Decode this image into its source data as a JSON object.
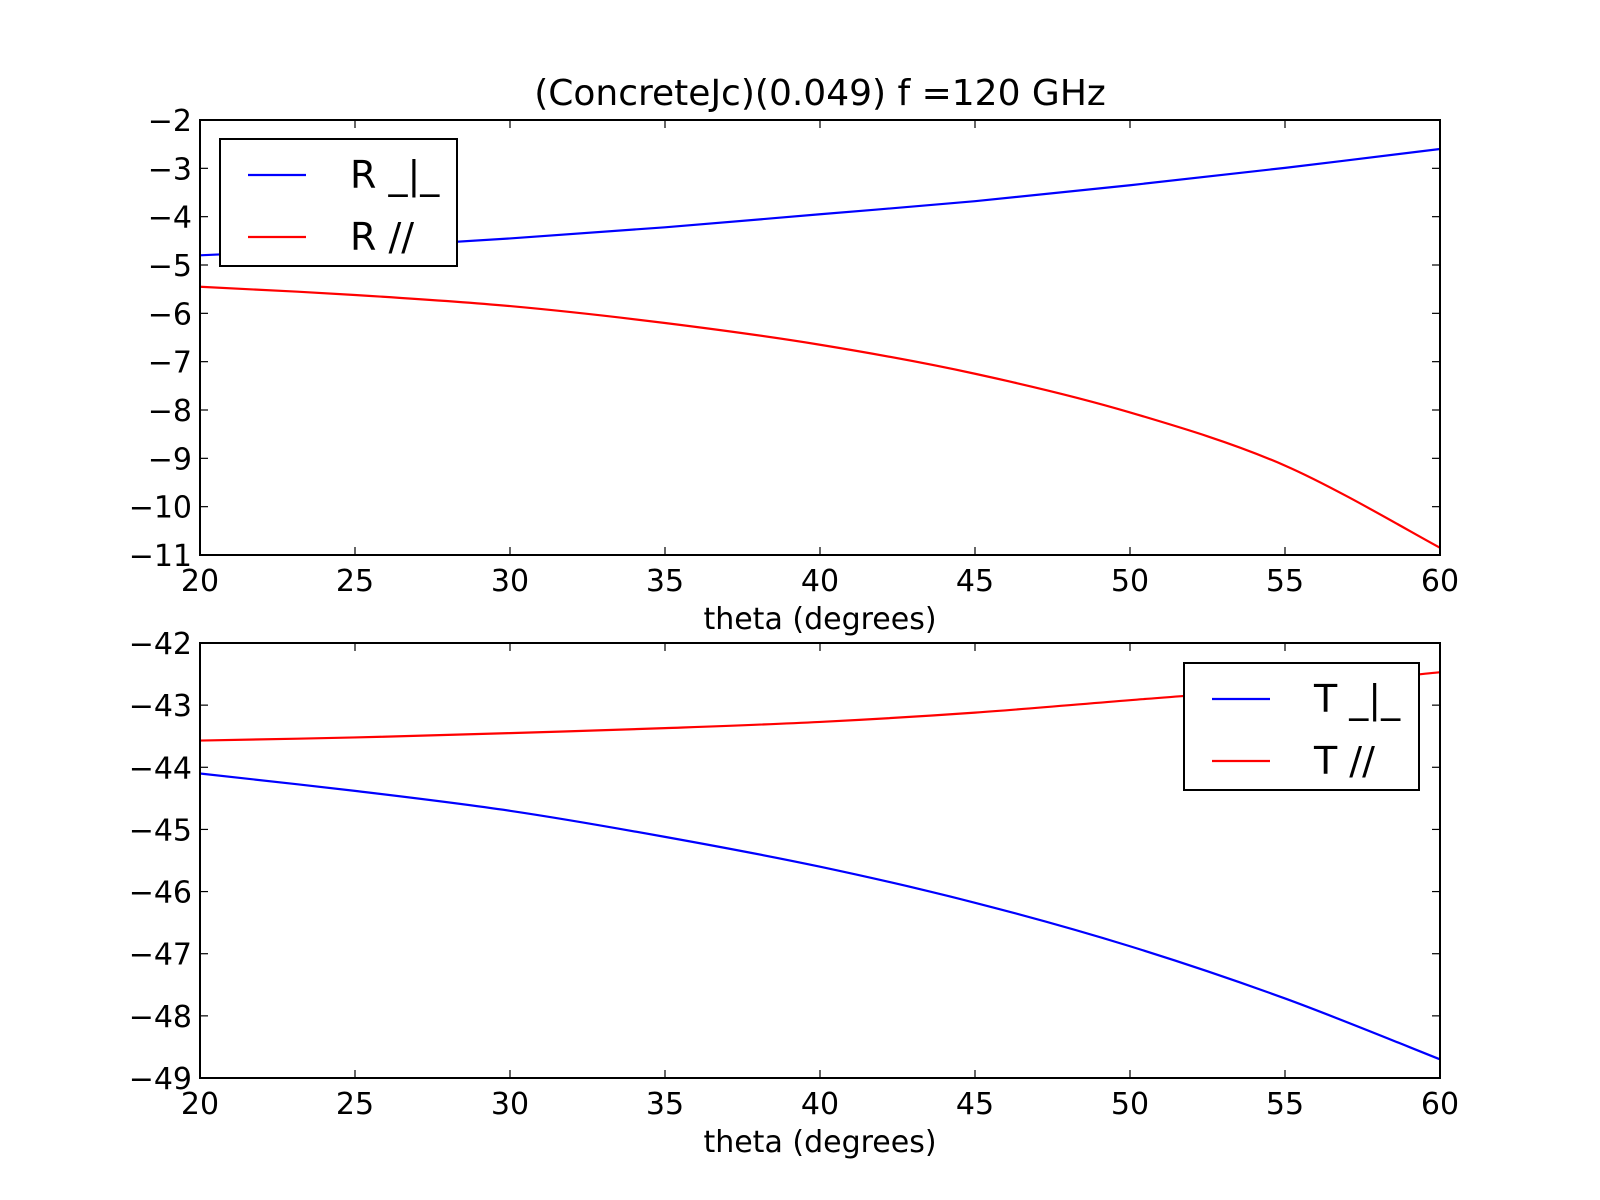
{
  "chart_data": [
    {
      "type": "line",
      "title": "(ConcreteJc)(0.049) f =120 GHz",
      "xlabel": "theta (degrees)",
      "ylabel": "",
      "xlim": [
        20,
        60
      ],
      "ylim": [
        -11,
        -2
      ],
      "xticks": [
        20,
        25,
        30,
        35,
        40,
        45,
        50,
        55,
        60
      ],
      "yticks": [
        -2,
        -3,
        -4,
        -5,
        -6,
        -7,
        -8,
        -9,
        -10,
        -11
      ],
      "grid": false,
      "legend_position": "top-left",
      "x": [
        20,
        25,
        30,
        35,
        40,
        45,
        50,
        55,
        60
      ],
      "series": [
        {
          "name": "R _|_",
          "color": "#0000ff",
          "values": [
            -4.8,
            -4.65,
            -4.45,
            -4.22,
            -3.95,
            -3.68,
            -3.35,
            -2.99,
            -2.6
          ]
        },
        {
          "name": "R //",
          "color": "#ff0000",
          "values": [
            -5.45,
            -5.62,
            -5.85,
            -6.2,
            -6.65,
            -7.25,
            -8.05,
            -9.15,
            -10.85
          ]
        }
      ]
    },
    {
      "type": "line",
      "title": "",
      "xlabel": "theta (degrees)",
      "ylabel": "",
      "xlim": [
        20,
        60
      ],
      "ylim": [
        -49,
        -42
      ],
      "xticks": [
        20,
        25,
        30,
        35,
        40,
        45,
        50,
        55,
        60
      ],
      "yticks": [
        -42,
        -43,
        -44,
        -45,
        -46,
        -47,
        -48,
        -49
      ],
      "grid": false,
      "legend_position": "top-right",
      "x": [
        20,
        25,
        30,
        35,
        40,
        45,
        50,
        55,
        60
      ],
      "series": [
        {
          "name": "T _|_",
          "color": "#0000ff",
          "values": [
            -44.1,
            -44.38,
            -44.7,
            -45.12,
            -45.6,
            -46.18,
            -46.88,
            -47.72,
            -48.7
          ]
        },
        {
          "name": "T //",
          "color": "#ff0000",
          "values": [
            -43.57,
            -43.52,
            -43.45,
            -43.37,
            -43.27,
            -43.12,
            -42.92,
            -42.72,
            -42.47
          ]
        }
      ]
    }
  ]
}
